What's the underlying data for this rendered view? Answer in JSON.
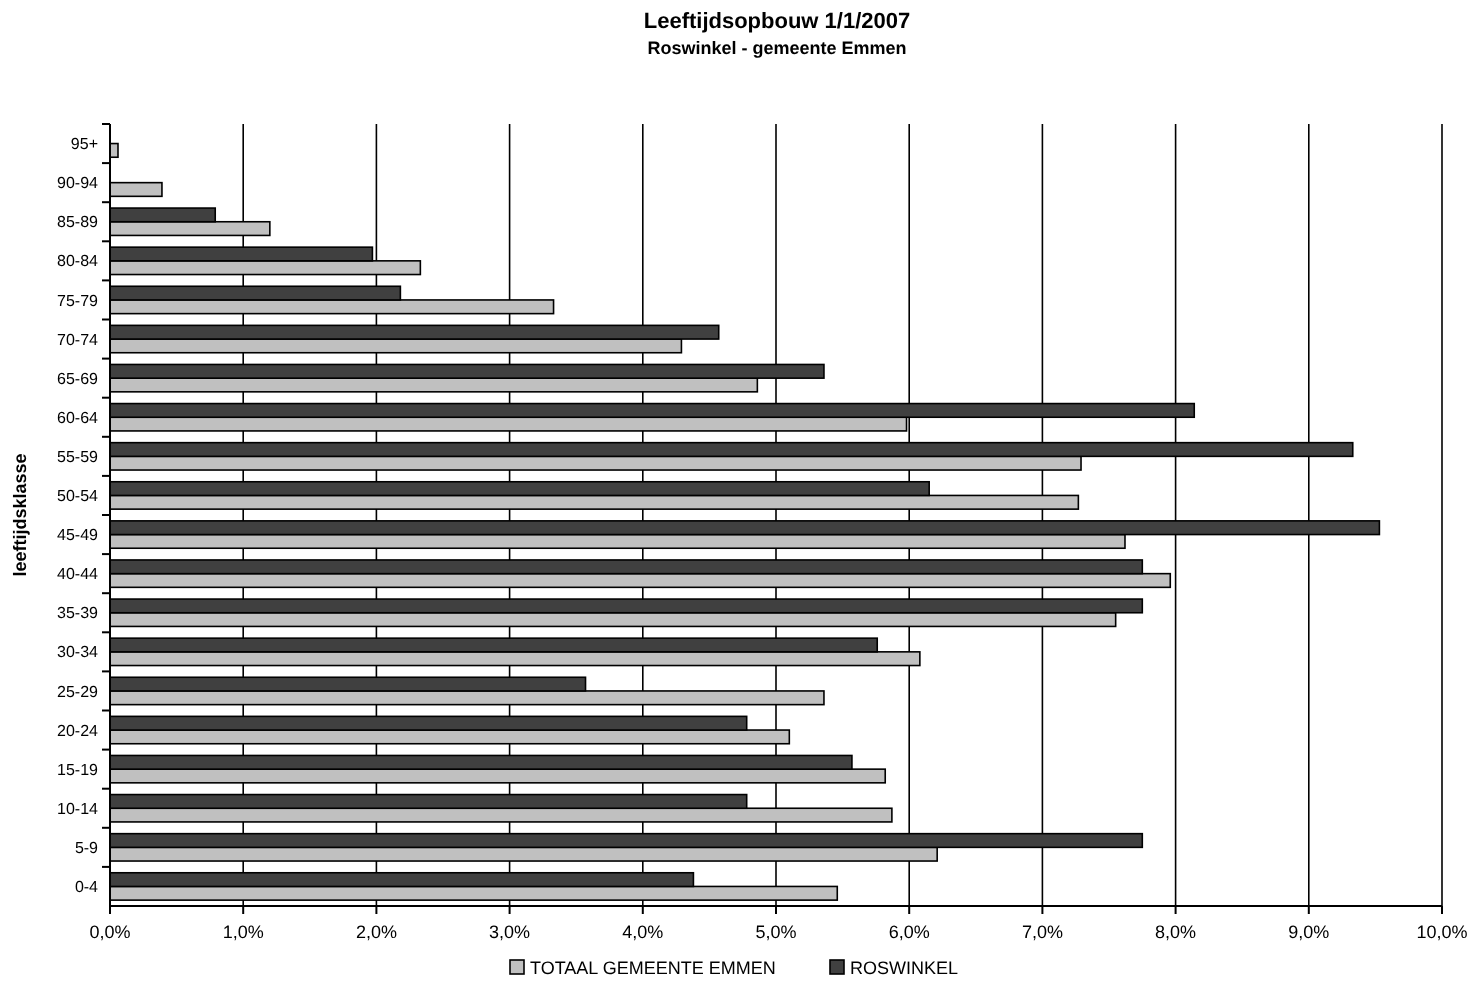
{
  "chart_data": {
    "type": "bar",
    "orientation": "horizontal",
    "title": "Leeftijdsopbouw 1/1/2007",
    "subtitle": "Roswinkel - gemeente Emmen",
    "ylabel": "leeftijdsklasse",
    "categories": [
      "95+",
      "90-94",
      "85-89",
      "80-84",
      "75-79",
      "70-74",
      "65-69",
      "60-64",
      "55-59",
      "50-54",
      "45-49",
      "40-44",
      "35-39",
      "30-34",
      "25-29",
      "20-24",
      "15-19",
      "10-14",
      "5-9",
      "0-4"
    ],
    "series": [
      {
        "name": "TOTAAL GEMEENTE EMMEN",
        "color": "#c0c0c0",
        "values": [
          0.06,
          0.39,
          1.2,
          2.33,
          3.33,
          4.29,
          4.86,
          5.98,
          7.29,
          7.27,
          7.62,
          7.96,
          7.55,
          6.08,
          5.36,
          5.1,
          5.82,
          5.87,
          6.21,
          5.46
        ]
      },
      {
        "name": "ROSWINKEL",
        "color": "#404040",
        "values": [
          null,
          null,
          0.79,
          1.97,
          2.18,
          4.57,
          5.36,
          8.14,
          9.33,
          6.15,
          9.53,
          7.75,
          7.75,
          5.76,
          3.57,
          4.78,
          5.57,
          4.78,
          7.75,
          4.38
        ]
      }
    ],
    "xlim": [
      0,
      10
    ],
    "xticks": [
      {
        "value": 0,
        "label": "0,0%"
      },
      {
        "value": 1,
        "label": "1,0%"
      },
      {
        "value": 2,
        "label": "2,0%"
      },
      {
        "value": 3,
        "label": "3,0%"
      },
      {
        "value": 4,
        "label": "4,0%"
      },
      {
        "value": 5,
        "label": "5,0%"
      },
      {
        "value": 6,
        "label": "6,0%"
      },
      {
        "value": 7,
        "label": "7,0%"
      },
      {
        "value": 8,
        "label": "8,0%"
      },
      {
        "value": 9,
        "label": "9,0%"
      },
      {
        "value": 10,
        "label": "10,0%"
      }
    ],
    "grid": "x",
    "legend": "bottom"
  }
}
